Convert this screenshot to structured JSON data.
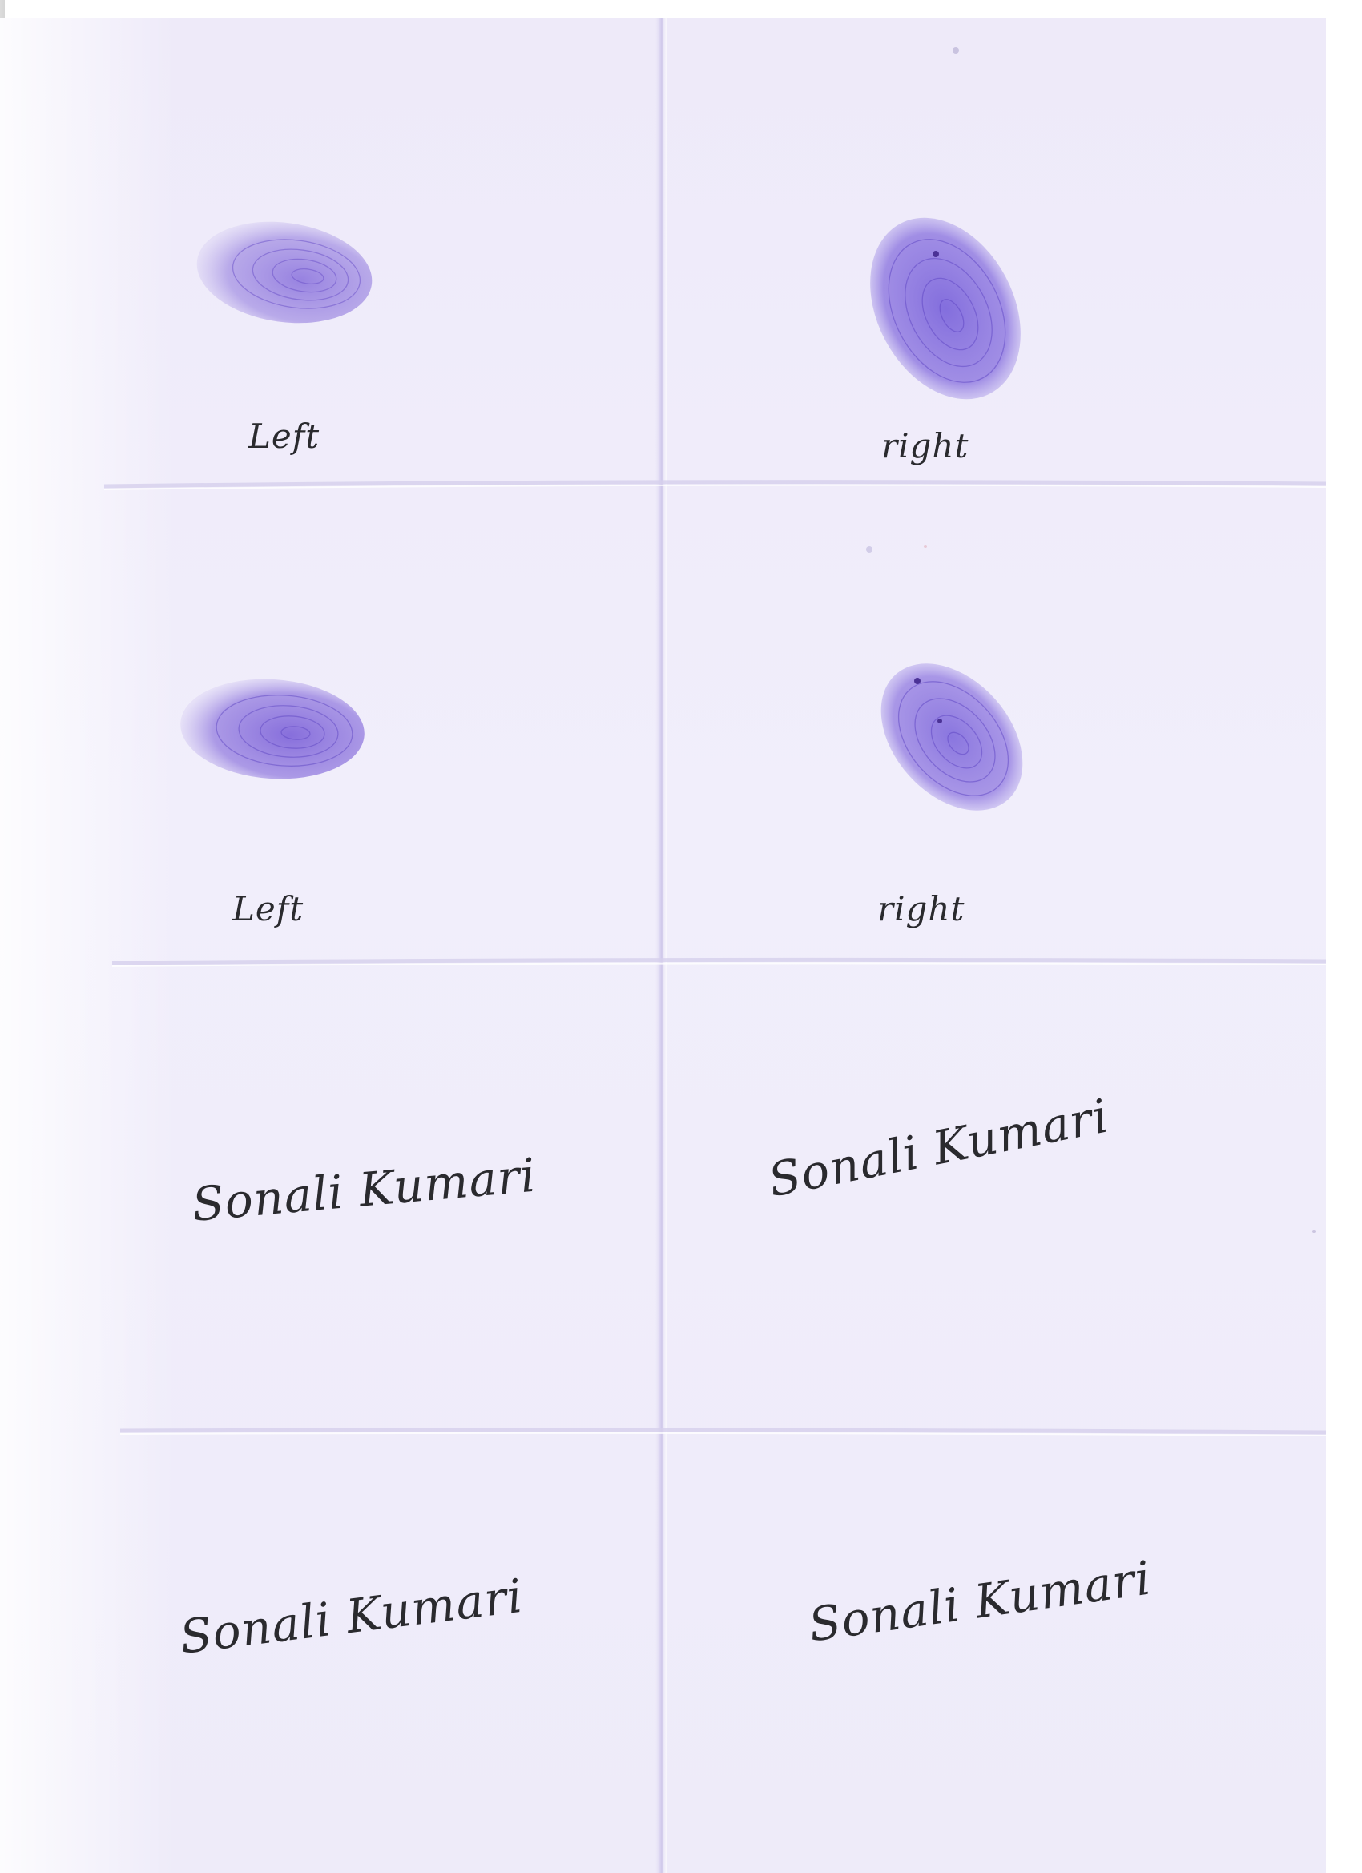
{
  "colors": {
    "paper": "#efecfa",
    "ink_print": "#7a5fd8",
    "ink_pen": "#2a2a2e",
    "fold_line": "#d9d4ee"
  },
  "prints": [
    {
      "label": "Left"
    },
    {
      "label": "right"
    },
    {
      "label": "Left"
    },
    {
      "label": "right"
    }
  ],
  "signatures": [
    {
      "text": "Sonali Kumari"
    },
    {
      "text": "Sonali Kumari"
    },
    {
      "text": "Sonali Kumari"
    },
    {
      "text": "Sonali Kumari"
    }
  ]
}
